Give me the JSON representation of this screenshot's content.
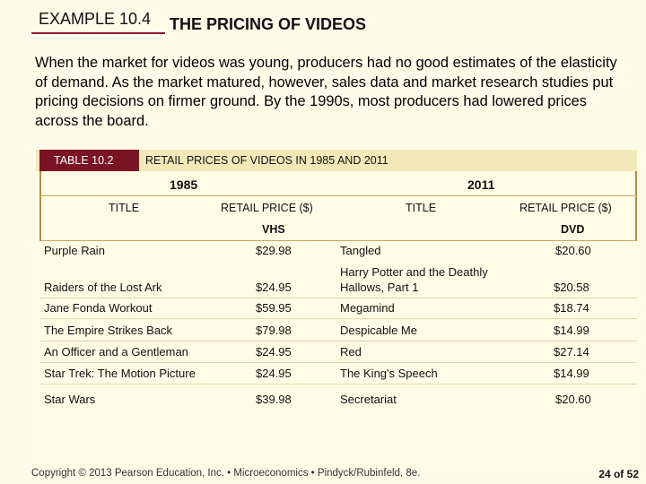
{
  "example": {
    "label": "EXAMPLE 10.4",
    "title": "THE PRICING OF VIDEOS"
  },
  "intro": "When the market for videos was young, producers had no good estimates of the elasticity of demand. As the market matured, however, sales data and market research studies put pricing decisions on firmer ground. By the 1990s, most producers had lowered prices across the board.",
  "table": {
    "badge": "TABLE 10.2",
    "caption": "RETAIL PRICES OF VIDEOS IN 1985 AND 2011",
    "year_left": "1985",
    "year_right": "2011",
    "col_title": "TITLE",
    "col_price": "RETAIL PRICE ($)",
    "format_left": "VHS",
    "format_right": "DVD",
    "rows": [
      {
        "t1": "Purple Rain",
        "p1": "$29.98",
        "t2": "Tangled",
        "p2": "$20.60"
      },
      {
        "t1": "Raiders of the Lost Ark",
        "p1": "$24.95",
        "t2a": "Harry Potter and the Deathly",
        "t2b": "Hallows, Part 1",
        "p2": "$20.58"
      },
      {
        "t1": "Jane Fonda Workout",
        "p1": "$59.95",
        "t2": "Megamind",
        "p2": "$18.74"
      },
      {
        "t1": "The Empire Strikes Back",
        "p1": "$79.98",
        "t2": "Despicable Me",
        "p2": "$14.99"
      },
      {
        "t1": "An Officer and a Gentleman",
        "p1": "$24.95",
        "t2": "Red",
        "p2": "$27.14"
      },
      {
        "t1": "Star Trek: The Motion Picture",
        "p1": "$24.95",
        "t2": "The King's Speech",
        "p2": "$14.99"
      },
      {
        "t1": "Star Wars",
        "p1": "$39.98",
        "t2": "Secretariat",
        "p2": "$20.60"
      }
    ]
  },
  "footer": {
    "text": "Copyright © 2013 Pearson Education, Inc. • Microeconomics • Pindyck/Rubinfeld, 8e.",
    "page": "24 of 52"
  }
}
